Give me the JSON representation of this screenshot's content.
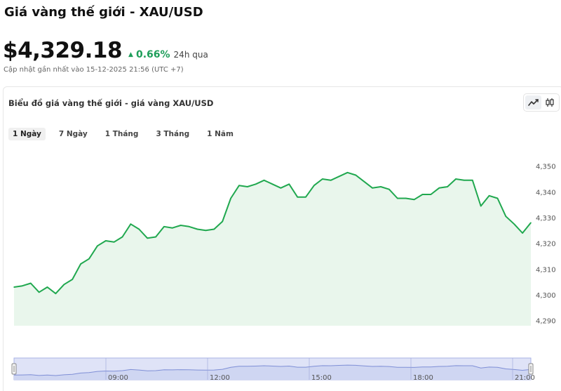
{
  "header": {
    "title": "Giá vàng thế giới - XAU/USD",
    "price": "$4,329.18",
    "change_pct": "0.66%",
    "change_period": "24h qua",
    "updated": "Cập nhật gần nhất vào 15-12-2025 21:56 (UTC +7)"
  },
  "card": {
    "title": "Biểu đồ giá vàng thế giới - giá vàng XAU/USD",
    "tabs": [
      {
        "label": "1 Ngày",
        "active": true
      },
      {
        "label": "7 Ngày",
        "active": false
      },
      {
        "label": "1 Tháng",
        "active": false
      },
      {
        "label": "3 Tháng",
        "active": false
      },
      {
        "label": "1 Năm",
        "active": false
      }
    ],
    "chart_types": [
      {
        "icon": "line-chart-icon",
        "active": true
      },
      {
        "icon": "candlestick-icon",
        "active": false
      }
    ]
  },
  "colors": {
    "line": "#20a84f",
    "area": "#e9f6ec",
    "up": "#1e9e5a",
    "navigator_fill": "#dfe3f7",
    "navigator_border": "#aab3e6"
  },
  "chart_data": {
    "type": "area",
    "title": "",
    "ylim": [
      4288,
      4354
    ],
    "yticks": [
      4290,
      4300,
      4310,
      4320,
      4330,
      4340,
      4350
    ],
    "ytick_labels": [
      "4,290",
      "4,300",
      "4,310",
      "4,320",
      "4,330",
      "4,340",
      "4,350"
    ],
    "navigator_ticks": [
      "09:00",
      "12:00",
      "15:00",
      "18:00",
      "21:00"
    ],
    "values": [
      4303,
      4303.5,
      4304.5,
      4301,
      4303,
      4300.5,
      4304,
      4306,
      4312,
      4314,
      4319,
      4321,
      4320.5,
      4322.5,
      4327.5,
      4325.5,
      4322,
      4322.5,
      4326.5,
      4326,
      4327,
      4326.5,
      4325.5,
      4325,
      4325.5,
      4328.5,
      4337.5,
      4342.5,
      4342,
      4343,
      4344.5,
      4343,
      4341.5,
      4343,
      4338,
      4338,
      4342.5,
      4345,
      4344.5,
      4346,
      4347.5,
      4346.5,
      4344,
      4341.5,
      4342,
      4341,
      4337.5,
      4337.5,
      4337,
      4339,
      4339,
      4341.5,
      4342,
      4345,
      4344.5,
      4344.5,
      4334.5,
      4338.5,
      4337.5,
      4330.5,
      4327.5,
      4324,
      4328
    ]
  }
}
